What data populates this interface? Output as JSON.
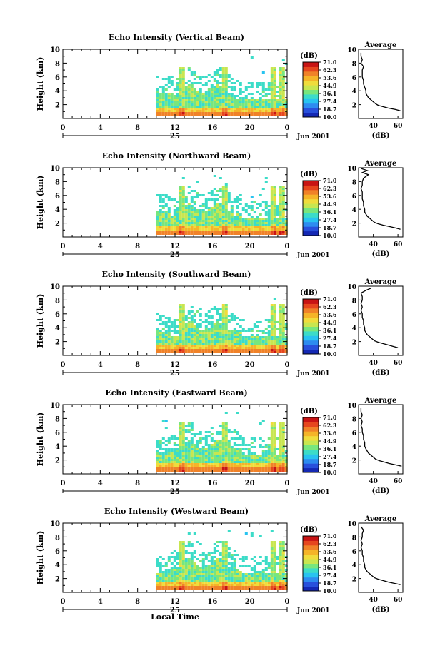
{
  "chart_data": {
    "type": "heatmap",
    "x_label": "Local Time",
    "date_label": "Jun 2001",
    "day_label": "25",
    "colorbar_unit": "(dB)",
    "colorbar_ticks": [
      "71.0",
      "62.3",
      "53.6",
      "44.9",
      "36.1",
      "27.4",
      "18.7",
      "10.0"
    ],
    "colorscale": [
      "#1428b4",
      "#2850dc",
      "#2d8cf0",
      "#28c3f0",
      "#3cdcc8",
      "#78e67d",
      "#c8e650",
      "#f0dc3c",
      "#f5b428",
      "#f08228",
      "#e6461e",
      "#c81414"
    ],
    "x_ticks": [
      "0",
      "4",
      "8",
      "12",
      "16",
      "20",
      "0"
    ],
    "xlim": [
      0,
      24
    ],
    "ylim": [
      0,
      10
    ],
    "y_ticks": [
      "2",
      "4",
      "6",
      "8",
      "10"
    ],
    "ylabel": "Height (km)",
    "profile_title": "Average",
    "profile_xlabel": "(dB)",
    "panels": [
      {
        "title": "Echo Intensity (Vertical Beam)",
        "profile_ticks": [
          "40",
          "60"
        ],
        "profile_xlim": [
          28,
          64
        ],
        "profile": [
          [
            1.1,
            62
          ],
          [
            1.3,
            58
          ],
          [
            1.5,
            52
          ],
          [
            1.7,
            48
          ],
          [
            1.9,
            44
          ],
          [
            2.1,
            42
          ],
          [
            2.4,
            40
          ],
          [
            2.7,
            38
          ],
          [
            3.0,
            36
          ],
          [
            3.3,
            35
          ],
          [
            3.6,
            34
          ],
          [
            4.0,
            34
          ],
          [
            4.5,
            33
          ],
          [
            5.0,
            32
          ],
          [
            5.5,
            32
          ],
          [
            6.0,
            31
          ],
          [
            6.5,
            31
          ],
          [
            7.0,
            31
          ],
          [
            7.5,
            32
          ],
          [
            8.0,
            30
          ],
          [
            8.5,
            31
          ],
          [
            9.0,
            30
          ],
          [
            9.5,
            30
          ]
        ]
      },
      {
        "title": "Echo Intensity (Northward Beam)",
        "profile_ticks": [
          "40",
          "60"
        ],
        "profile_xlim": [
          28,
          64
        ],
        "profile": [
          [
            1.1,
            62
          ],
          [
            1.3,
            58
          ],
          [
            1.5,
            53
          ],
          [
            1.7,
            48
          ],
          [
            1.9,
            44
          ],
          [
            2.1,
            41
          ],
          [
            2.4,
            39
          ],
          [
            2.7,
            37
          ],
          [
            3.0,
            35
          ],
          [
            3.3,
            34
          ],
          [
            3.6,
            33
          ],
          [
            4.0,
            33
          ],
          [
            4.5,
            32
          ],
          [
            5.0,
            32
          ],
          [
            5.5,
            31
          ],
          [
            6.0,
            31
          ],
          [
            6.5,
            31
          ],
          [
            7.0,
            30
          ],
          [
            7.5,
            31
          ],
          [
            8.0,
            31
          ],
          [
            8.5,
            32
          ],
          [
            9.0,
            36
          ],
          [
            9.3,
            31
          ],
          [
            9.6,
            35
          ],
          [
            9.9,
            30
          ]
        ]
      },
      {
        "title": "Echo Intensity (Southward Beam)",
        "profile_ticks": [
          "40",
          "60"
        ],
        "profile_xlim": [
          28,
          64
        ],
        "profile": [
          [
            1.1,
            60
          ],
          [
            1.3,
            56
          ],
          [
            1.5,
            52
          ],
          [
            1.7,
            48
          ],
          [
            1.9,
            44
          ],
          [
            2.1,
            41
          ],
          [
            2.4,
            39
          ],
          [
            2.7,
            37
          ],
          [
            3.0,
            35
          ],
          [
            3.3,
            34
          ],
          [
            3.6,
            33
          ],
          [
            4.0,
            33
          ],
          [
            4.5,
            32
          ],
          [
            5.0,
            32
          ],
          [
            5.5,
            31
          ],
          [
            6.0,
            31
          ],
          [
            6.5,
            30
          ],
          [
            7.0,
            31
          ],
          [
            7.5,
            30
          ],
          [
            8.0,
            31
          ],
          [
            8.5,
            31
          ],
          [
            9.0,
            30
          ],
          [
            9.4,
            34
          ],
          [
            9.7,
            38
          ]
        ]
      },
      {
        "title": "Echo Intensity (Eastward Beam)",
        "profile_ticks": [
          "40",
          "60"
        ],
        "profile_xlim": [
          28,
          64
        ],
        "profile": [
          [
            1.1,
            63
          ],
          [
            1.3,
            58
          ],
          [
            1.5,
            53
          ],
          [
            1.7,
            49
          ],
          [
            1.9,
            45
          ],
          [
            2.1,
            42
          ],
          [
            2.4,
            40
          ],
          [
            2.7,
            38
          ],
          [
            3.0,
            36
          ],
          [
            3.3,
            35
          ],
          [
            3.6,
            34
          ],
          [
            4.0,
            33
          ],
          [
            4.5,
            33
          ],
          [
            5.0,
            32
          ],
          [
            5.5,
            32
          ],
          [
            6.0,
            31
          ],
          [
            6.5,
            31
          ],
          [
            7.0,
            30
          ],
          [
            7.5,
            31
          ],
          [
            8.0,
            30
          ],
          [
            8.5,
            31
          ],
          [
            9.0,
            30
          ],
          [
            9.5,
            30
          ]
        ]
      },
      {
        "title": "Echo Intensity (Westward Beam)",
        "profile_ticks": [
          "40",
          "60"
        ],
        "profile_xlim": [
          28,
          64
        ],
        "profile": [
          [
            1.1,
            62
          ],
          [
            1.3,
            57
          ],
          [
            1.5,
            52
          ],
          [
            1.7,
            48
          ],
          [
            1.9,
            44
          ],
          [
            2.1,
            41
          ],
          [
            2.4,
            39
          ],
          [
            2.7,
            37
          ],
          [
            3.0,
            35
          ],
          [
            3.3,
            34
          ],
          [
            3.6,
            33
          ],
          [
            4.0,
            33
          ],
          [
            4.5,
            32
          ],
          [
            5.0,
            32
          ],
          [
            5.5,
            31
          ],
          [
            6.0,
            31
          ],
          [
            6.5,
            30
          ],
          [
            7.0,
            31
          ],
          [
            7.5,
            30
          ],
          [
            8.0,
            31
          ],
          [
            8.5,
            31
          ],
          [
            9.0,
            32
          ],
          [
            9.5,
            30
          ]
        ]
      }
    ]
  }
}
